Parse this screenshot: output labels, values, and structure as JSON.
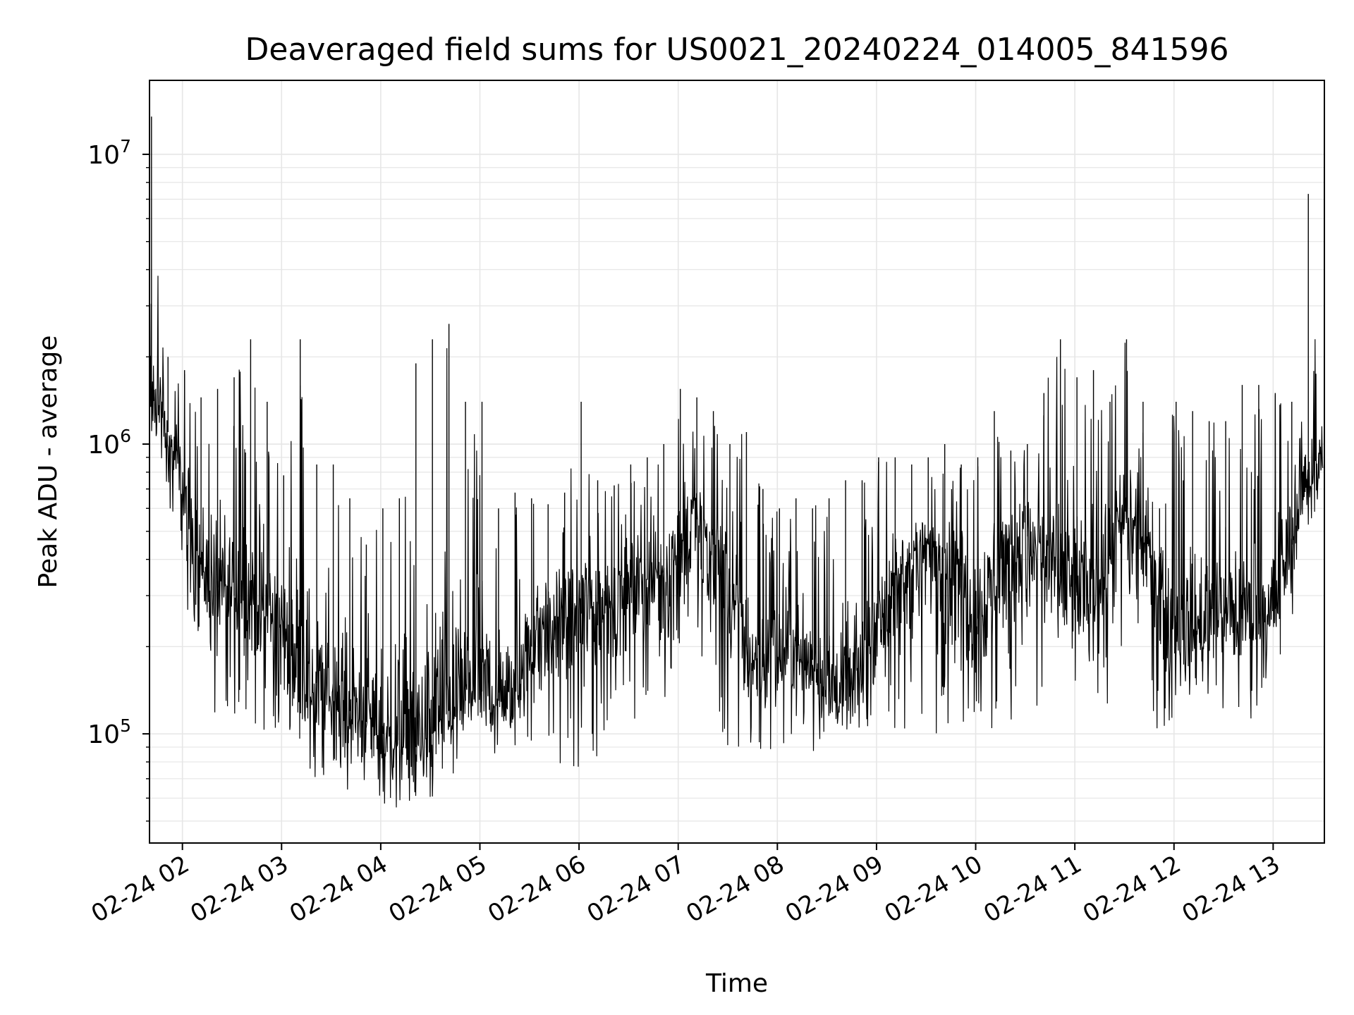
{
  "chart_data": {
    "type": "line",
    "title": "Deaveraged field sums for US0021_20240224_014005_841596",
    "xlabel": "Time",
    "ylabel": "Peak ADU - average",
    "yscale": "log",
    "xlim": [
      "2024-02-24T01:40:05",
      "2024-02-24T13:31:00"
    ],
    "ylim": [
      42000,
      18000000
    ],
    "grid": true,
    "colors": {
      "line": "#000000",
      "grid": "#e6e6e6",
      "axes": "#000000"
    },
    "x_tick_labels": [
      "02-24 02",
      "02-24 03",
      "02-24 04",
      "02-24 05",
      "02-24 06",
      "02-24 07",
      "02-24 08",
      "02-24 09",
      "02-24 10",
      "02-24 11",
      "02-24 12",
      "02-24 13"
    ],
    "x_tick_times": [
      "2024-02-24T02:00",
      "2024-02-24T03:00",
      "2024-02-24T04:00",
      "2024-02-24T05:00",
      "2024-02-24T06:00",
      "2024-02-24T07:00",
      "2024-02-24T08:00",
      "2024-02-24T09:00",
      "2024-02-24T10:00",
      "2024-02-24T11:00",
      "2024-02-24T12:00",
      "2024-02-24T13:00"
    ],
    "y_ticks": [
      {
        "base": "10",
        "exp": "5",
        "value": 100000
      },
      {
        "base": "10",
        "exp": "6",
        "value": 1000000
      },
      {
        "base": "10",
        "exp": "7",
        "value": 10000000
      }
    ],
    "series": [
      {
        "x": [
          "2024-02-24T01:40",
          "2024-02-24T01:50",
          "2024-02-24T02:00",
          "2024-02-24T02:10",
          "2024-02-24T02:20",
          "2024-02-24T02:30",
          "2024-02-24T02:40",
          "2024-02-24T02:50",
          "2024-02-24T03:00",
          "2024-02-24T03:10",
          "2024-02-24T03:20",
          "2024-02-24T03:30",
          "2024-02-24T03:40",
          "2024-02-24T03:50",
          "2024-02-24T04:00",
          "2024-02-24T04:10",
          "2024-02-24T04:20",
          "2024-02-24T04:30",
          "2024-02-24T04:40",
          "2024-02-24T04:50",
          "2024-02-24T05:00",
          "2024-02-24T05:10",
          "2024-02-24T05:20",
          "2024-02-24T05:30",
          "2024-02-24T05:40",
          "2024-02-24T05:50",
          "2024-02-24T06:00",
          "2024-02-24T06:10",
          "2024-02-24T06:20",
          "2024-02-24T06:30",
          "2024-02-24T06:40",
          "2024-02-24T06:50",
          "2024-02-24T07:00",
          "2024-02-24T07:10",
          "2024-02-24T07:20",
          "2024-02-24T07:30",
          "2024-02-24T07:40",
          "2024-02-24T07:50",
          "2024-02-24T08:00",
          "2024-02-24T08:10",
          "2024-02-24T08:20",
          "2024-02-24T08:30",
          "2024-02-24T08:40",
          "2024-02-24T08:50",
          "2024-02-24T09:00",
          "2024-02-24T09:10",
          "2024-02-24T09:20",
          "2024-02-24T09:30",
          "2024-02-24T09:40",
          "2024-02-24T09:50",
          "2024-02-24T10:00",
          "2024-02-24T10:10",
          "2024-02-24T10:20",
          "2024-02-24T10:30",
          "2024-02-24T10:40",
          "2024-02-24T10:50",
          "2024-02-24T11:00",
          "2024-02-24T11:10",
          "2024-02-24T11:20",
          "2024-02-24T11:30",
          "2024-02-24T11:40",
          "2024-02-24T11:50",
          "2024-02-24T12:00",
          "2024-02-24T12:10",
          "2024-02-24T12:20",
          "2024-02-24T12:30",
          "2024-02-24T12:40",
          "2024-02-24T12:50",
          "2024-02-24T13:00",
          "2024-02-24T13:10",
          "2024-02-24T13:20",
          "2024-02-24T13:30"
        ],
        "median": [
          1500000,
          1100000,
          700000,
          400000,
          320000,
          300000,
          290000,
          280000,
          230000,
          170000,
          150000,
          130000,
          120000,
          110000,
          100000,
          95000,
          90000,
          100000,
          120000,
          130000,
          140000,
          130000,
          120000,
          200000,
          240000,
          250000,
          260000,
          280000,
          300000,
          320000,
          340000,
          360000,
          420000,
          550000,
          450000,
          320000,
          200000,
          170000,
          180000,
          200000,
          180000,
          140000,
          130000,
          150000,
          250000,
          300000,
          400000,
          450000,
          420000,
          380000,
          250000,
          350000,
          450000,
          480000,
          420000,
          350000,
          300000,
          300000,
          400000,
          550000,
          450000,
          400000,
          200000,
          220000,
          240000,
          260000,
          250000,
          240000,
          270000,
          450000,
          750000,
          850000
        ],
        "high": [
          13500000,
          2000000,
          1800000,
          1450000,
          1550000,
          1700000,
          2300000,
          1400000,
          780000,
          2300000,
          850000,
          850000,
          650000,
          450000,
          600000,
          650000,
          1900000,
          2300000,
          2600000,
          1400000,
          1400000,
          600000,
          680000,
          650000,
          620000,
          680000,
          1400000,
          750000,
          720000,
          850000,
          900000,
          1000000,
          1550000,
          1450000,
          1300000,
          1000000,
          1100000,
          700000,
          600000,
          650000,
          600000,
          650000,
          750000,
          750000,
          900000,
          900000,
          850000,
          900000,
          1000000,
          850000,
          900000,
          1300000,
          950000,
          1000000,
          1500000,
          2300000,
          1700000,
          1800000,
          1400000,
          2300000,
          1400000,
          600000,
          1400000,
          1300000,
          1200000,
          1200000,
          1600000,
          1600000,
          1500000,
          1400000,
          7300000,
          1100000
        ],
        "low": [
          1100000,
          700000,
          350000,
          150000,
          100000,
          110000,
          100000,
          95000,
          82000,
          72000,
          62000,
          58000,
          60000,
          62000,
          56000,
          54000,
          60000,
          58000,
          70000,
          72000,
          75000,
          82000,
          90000,
          95000,
          80000,
          78000,
          73000,
          82000,
          90000,
          110000,
          85000,
          100000,
          180000,
          170000,
          120000,
          90000,
          85000,
          85000,
          90000,
          92000,
          85000,
          85000,
          85000,
          90000,
          120000,
          100000,
          105000,
          110000,
          92000,
          95000,
          88000,
          100000,
          110000,
          105000,
          98000,
          100000,
          120000,
          130000,
          120000,
          150000,
          110000,
          100000,
          100000,
          100000,
          105000,
          105000,
          105000,
          110000,
          130000,
          220000,
          500000,
          650000
        ]
      }
    ]
  }
}
